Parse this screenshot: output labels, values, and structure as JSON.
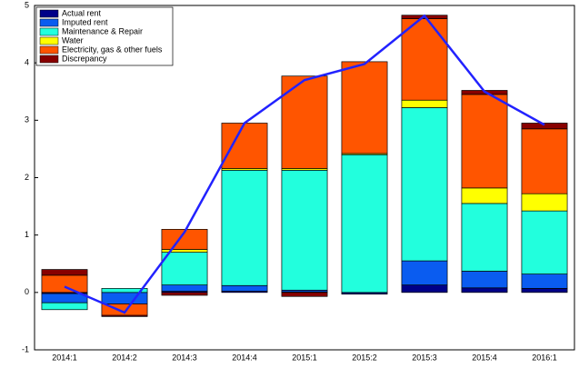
{
  "chart_data": {
    "type": "stacked_bar_line",
    "categories": [
      "2014:1",
      "2014:2",
      "2014:3",
      "2014:4",
      "2015:1",
      "2015:2",
      "2015:3",
      "2015:4",
      "2016:1"
    ],
    "series": [
      {
        "name": "Actual rent",
        "color": "#000088",
        "values": [
          -0.02,
          0,
          0.02,
          0.02,
          0.01,
          -0.03,
          0.13,
          0.08,
          0.07
        ]
      },
      {
        "name": "Imputed rent",
        "color": "#0a5cf0",
        "values": [
          -0.16,
          -0.2,
          0.11,
          0.1,
          0.03,
          0,
          0.42,
          0.29,
          0.25
        ]
      },
      {
        "name": "Maintenance & Repair",
        "color": "#22ffdd",
        "values": [
          -0.12,
          0.07,
          0.57,
          2.01,
          2.09,
          2.4,
          2.67,
          1.18,
          1.1
        ]
      },
      {
        "name": "Water",
        "color": "#ffff00",
        "values": [
          0,
          0,
          0.05,
          0.03,
          0.03,
          0.02,
          0.13,
          0.27,
          0.3
        ]
      },
      {
        "name": "Electricity, gas & other fuels",
        "color": "#ff5500",
        "values": [
          0.3,
          -0.2,
          0.35,
          0.79,
          1.61,
          1.6,
          1.42,
          1.63,
          1.13
        ]
      },
      {
        "name": "Discrepancy",
        "color": "#880000",
        "values": [
          0.1,
          -0.02,
          -0.05,
          0,
          -0.07,
          0,
          0.06,
          0.07,
          0.1
        ]
      }
    ],
    "line": {
      "color": "#2222ff",
      "values": [
        0.1,
        -0.35,
        1.05,
        2.95,
        3.7,
        3.98,
        4.82,
        3.5,
        2.92
      ]
    },
    "ylim": [
      -1,
      5
    ],
    "yticks": [
      -1,
      0,
      1,
      2,
      3,
      4,
      5
    ],
    "legend": "upper-left"
  }
}
